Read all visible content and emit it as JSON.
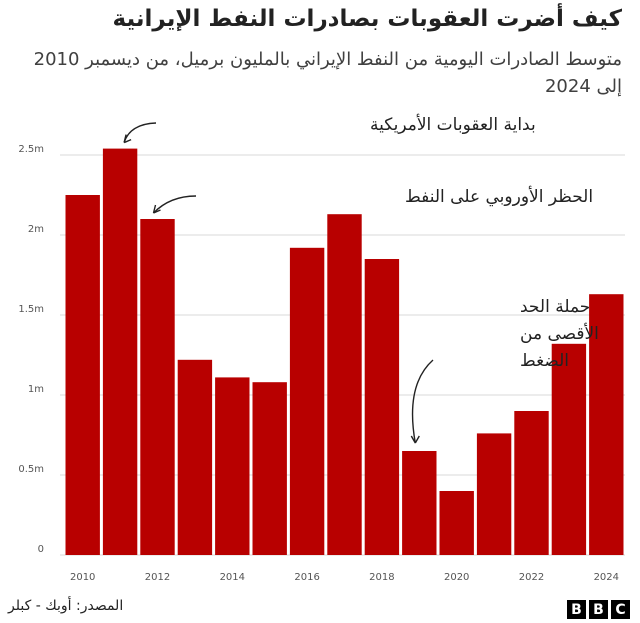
{
  "title": "كيف أضرت العقوبات بصادرات النفط الإيرانية",
  "subtitle": "متوسط الصادرات اليومية من النفط الإيراني بالمليون برميل، من ديسمبر 2010 إلى 2024",
  "source": "المصدر: أوبك - كبلر",
  "logo_letters": [
    "B",
    "B",
    "C"
  ],
  "colors": {
    "bar": "#b80000",
    "grid": "#d9d9d9",
    "text": "#222222"
  },
  "chart_data": {
    "type": "bar",
    "categories": [
      "2010",
      "2011",
      "2012",
      "2013",
      "2014",
      "2015",
      "2016",
      "2017",
      "2018",
      "2019",
      "2020",
      "2021",
      "2022",
      "2023",
      "2024"
    ],
    "values": [
      2.25,
      2.54,
      2.1,
      1.22,
      1.11,
      1.08,
      1.92,
      2.13,
      1.85,
      0.65,
      0.4,
      0.76,
      0.9,
      1.32,
      1.63
    ],
    "ylim": [
      0,
      2.5
    ],
    "yticks": [
      0,
      0.5,
      1,
      1.5,
      2,
      2.5
    ],
    "ytick_labels": [
      "0",
      "0.5m",
      "1m",
      "1.5m",
      "2m",
      "2.5m"
    ],
    "xtick_labels": [
      "2010",
      "2012",
      "2014",
      "2016",
      "2018",
      "2020",
      "2022",
      "2024"
    ],
    "annotations": [
      {
        "text": "بداية العقوبات الأمريكية",
        "target": "2011"
      },
      {
        "text": "الحظر الأوروبي على النفط",
        "target": "2012"
      },
      {
        "text": [
          "حملة الحد",
          "الأقصى من",
          "الضغط"
        ],
        "target": "2019"
      }
    ],
    "grid": true
  }
}
